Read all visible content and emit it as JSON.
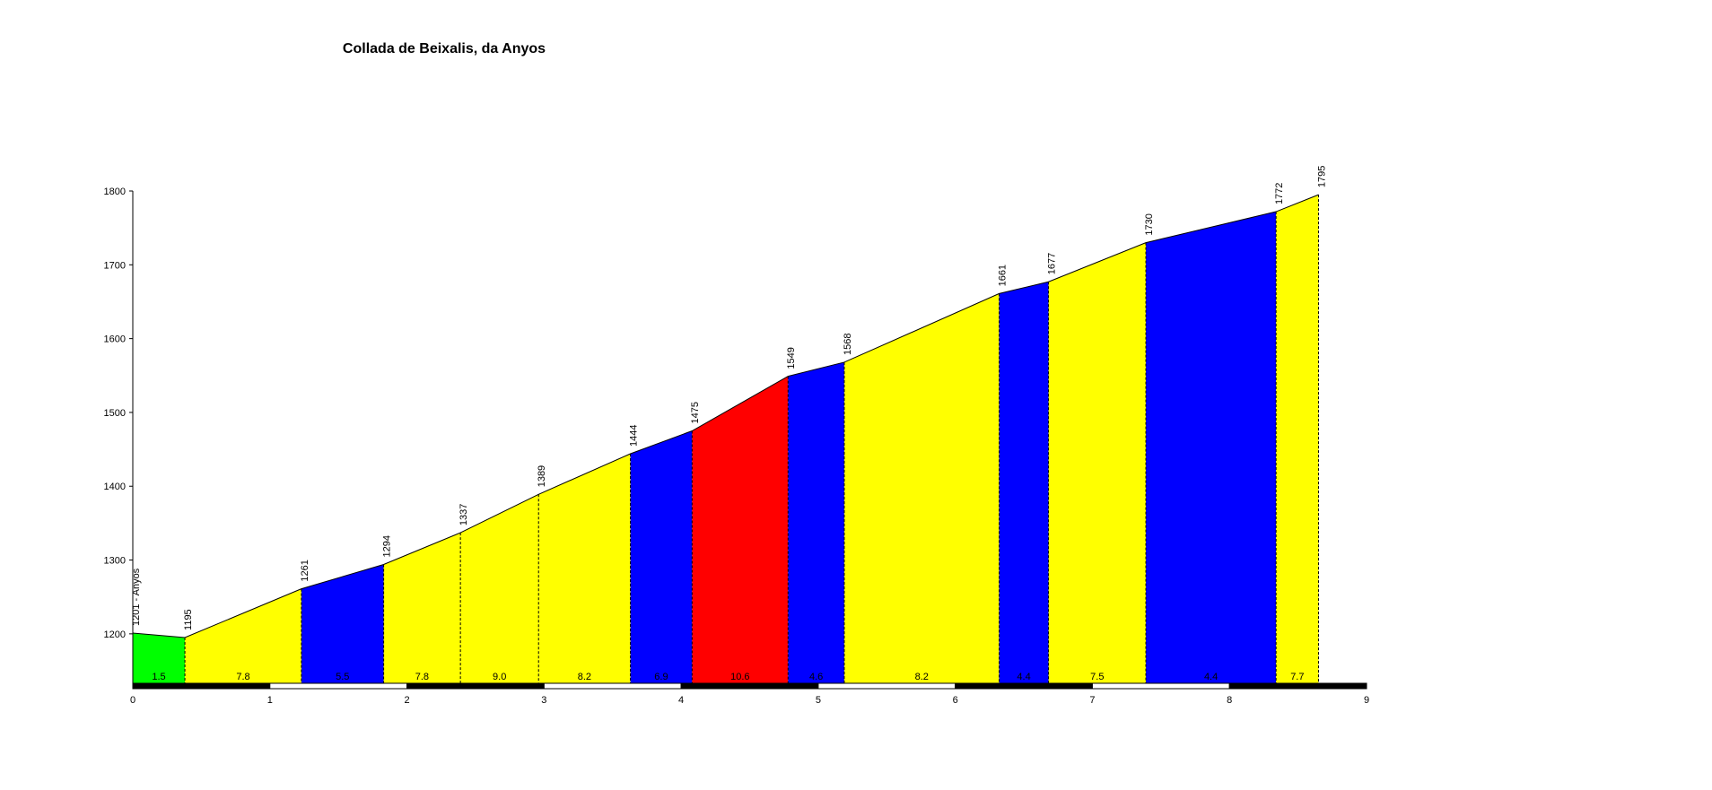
{
  "chart_data": {
    "type": "area",
    "title": "Collada de Beixalis, da Anyos",
    "x": [
      0,
      0.38,
      1.23,
      1.83,
      2.39,
      2.96,
      3.63,
      4.08,
      4.78,
      5.19,
      6.32,
      6.68,
      7.39,
      8.34,
      8.65
    ],
    "values": [
      1201,
      1195,
      1261,
      1294,
      1337,
      1389,
      1444,
      1475,
      1549,
      1568,
      1661,
      1677,
      1730,
      1772,
      1795
    ],
    "value_labels": [
      "1201 - Anyos",
      "1195",
      "1261",
      "1294",
      "1337",
      "1389",
      "1444",
      "1475",
      "1549",
      "1568",
      "1661",
      "1677",
      "1730",
      "1772",
      "1795"
    ],
    "segment_labels": [
      "1.5",
      "7.8",
      "5.5",
      "7.8",
      "9.0",
      "8.2",
      "6.9",
      "10.6",
      "4.6",
      "8.2",
      "4.4",
      "7.5",
      "4.4",
      "7.7"
    ],
    "segment_colors": [
      "#00ff00",
      "#ffff00",
      "#0000ff",
      "#ffff00",
      "#ffff00",
      "#ffff00",
      "#0000ff",
      "#ff0000",
      "#0000ff",
      "#ffff00",
      "#0000ff",
      "#ffff00",
      "#0000ff",
      "#ffff00"
    ],
    "xlim": [
      0,
      9
    ],
    "xticks": [
      0,
      1,
      2,
      3,
      4,
      5,
      6,
      7,
      8,
      9
    ],
    "ylim": [
      1133,
      1800
    ],
    "yticks": [
      1200,
      1300,
      1400,
      1500,
      1600,
      1700,
      1800
    ]
  }
}
